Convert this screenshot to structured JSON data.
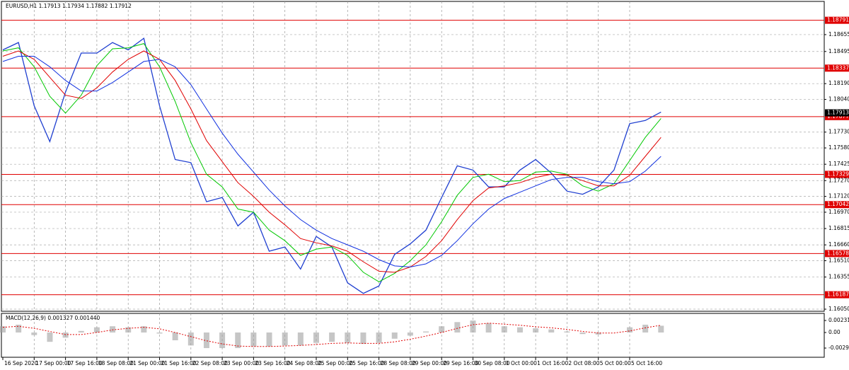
{
  "chart_data": {
    "type": "line",
    "title": "EURUSD,H1  1.17913 1.17934 1.17882 1.17912",
    "categories": [
      "16 Sep 2020",
      null,
      "17 Sep 00:00",
      null,
      "17 Sep 16:00",
      null,
      "18 Sep 08:00",
      null,
      "21 Sep 00:00",
      null,
      "21 Sep 16:00",
      null,
      "22 Sep 08:00",
      null,
      "23 Sep 00:00",
      null,
      "23 Sep 16:00",
      null,
      "24 Sep 08:00",
      null,
      "25 Sep 00:00",
      null,
      "25 Sep 16:00",
      null,
      "28 Sep 08:00",
      null,
      "29 Sep 00:00",
      null,
      "29 Sep 16:00",
      null,
      "30 Sep 08:00",
      null,
      "1 Oct 00:00",
      null,
      "1 Oct 16:00",
      null,
      "2 Oct 08:00",
      null,
      "5 Oct 00:00",
      null,
      "5 Oct 16:00",
      null,
      null
    ],
    "series": [
      {
        "color": "#1f3fd0",
        "values": [
          1.1851,
          1.1858,
          1.1798,
          1.1764,
          1.1811,
          1.1848,
          1.1848,
          1.1858,
          1.1851,
          1.1862,
          1.1798,
          1.1747,
          1.1744,
          1.1707,
          1.1711,
          1.1684,
          1.1697,
          1.166,
          1.1664,
          1.1643,
          1.1674,
          1.1664,
          1.163,
          1.162,
          1.1627,
          1.1657,
          1.1667,
          1.168,
          1.1711,
          1.1741,
          1.1737,
          1.1721,
          1.1721,
          1.1737,
          1.1747,
          1.1734,
          1.1717,
          1.1714,
          1.1721,
          1.1737,
          1.1781,
          1.1784,
          1.1792
        ]
      },
      {
        "color": "#00c800",
        "values": [
          1.185,
          1.1853,
          1.1835,
          1.1807,
          1.1791,
          1.1808,
          1.1836,
          1.1852,
          1.1853,
          1.1857,
          1.1835,
          1.1802,
          1.1763,
          1.1733,
          1.1721,
          1.17,
          1.1697,
          1.168,
          1.167,
          1.1656,
          1.1662,
          1.1664,
          1.1656,
          1.164,
          1.1631,
          1.1639,
          1.1651,
          1.1666,
          1.1688,
          1.1713,
          1.173,
          1.1733,
          1.1726,
          1.1727,
          1.1735,
          1.1736,
          1.1733,
          1.1722,
          1.1717,
          1.1724,
          1.1746,
          1.1768,
          1.1786
        ]
      },
      {
        "color": "#e00000",
        "values": [
          1.1845,
          1.185,
          1.1842,
          1.1825,
          1.1808,
          1.1805,
          1.1815,
          1.183,
          1.1842,
          1.185,
          1.1842,
          1.1822,
          1.1795,
          1.1765,
          1.1745,
          1.1725,
          1.1712,
          1.1697,
          1.1685,
          1.1672,
          1.1668,
          1.1665,
          1.166,
          1.165,
          1.1641,
          1.164,
          1.1645,
          1.1655,
          1.167,
          1.169,
          1.1708,
          1.172,
          1.1722,
          1.1725,
          1.173,
          1.1733,
          1.1732,
          1.1727,
          1.1722,
          1.1722,
          1.1732,
          1.175,
          1.1768
        ]
      },
      {
        "color": "#1030e0",
        "values": [
          1.184,
          1.1845,
          1.1845,
          1.1835,
          1.1822,
          1.1812,
          1.1812,
          1.182,
          1.183,
          1.184,
          1.1842,
          1.1835,
          1.1818,
          1.1795,
          1.1772,
          1.1752,
          1.1735,
          1.1718,
          1.1703,
          1.169,
          1.168,
          1.1672,
          1.1666,
          1.166,
          1.1652,
          1.1646,
          1.1645,
          1.1648,
          1.1656,
          1.167,
          1.1686,
          1.17,
          1.171,
          1.1716,
          1.1722,
          1.1728,
          1.173,
          1.173,
          1.1726,
          1.1724,
          1.1726,
          1.1736,
          1.175
        ]
      }
    ],
    "ylim": [
      1.1603,
      1.1897
    ],
    "yticks": [
      {
        "value": 1.18655,
        "label": "1.18655"
      },
      {
        "value": 1.18495,
        "label": "1.18495"
      },
      {
        "value": 1.1819,
        "label": "1.18190"
      },
      {
        "value": 1.1804,
        "label": "1.18040"
      },
      {
        "value": 1.1773,
        "label": "1.17730"
      },
      {
        "value": 1.1758,
        "label": "1.17580"
      },
      {
        "value": 1.17425,
        "label": "1.17425"
      },
      {
        "value": 1.1727,
        "label": "1.17270"
      },
      {
        "value": 1.1712,
        "label": "1.17120"
      },
      {
        "value": 1.1697,
        "label": "1.16970"
      },
      {
        "value": 1.16815,
        "label": "1.16815"
      },
      {
        "value": 1.1666,
        "label": "1.16660"
      },
      {
        "value": 1.1651,
        "label": "1.16510"
      },
      {
        "value": 1.16355,
        "label": "1.16355"
      },
      {
        "value": 1.1605,
        "label": "1.16050"
      }
    ],
    "levels": [
      1.18791,
      1.18337,
      1.17877,
      1.17329,
      1.17042,
      1.16578,
      1.16187
    ],
    "level_color": "#e00000",
    "current_price": 1.17913,
    "grid": true,
    "macd": {
      "title": "MACD(12,26,9) 0.001327 0.001440",
      "histogram_color": "#a0a0a0",
      "signal_color": "#e00000",
      "histogram": [
        0.0012,
        0.0015,
        -0.0005,
        -0.0018,
        -0.001,
        0.0003,
        0.001,
        0.0012,
        0.001,
        0.0012,
        -0.0002,
        -0.0015,
        -0.0025,
        -0.003,
        -0.003,
        -0.003,
        -0.0027,
        -0.0027,
        -0.0025,
        -0.0025,
        -0.002,
        -0.0018,
        -0.002,
        -0.0022,
        -0.002,
        -0.0012,
        -0.0006,
        0.0002,
        0.0012,
        0.002,
        0.0023,
        0.0018,
        0.0012,
        0.001,
        0.0008,
        0.0006,
        0.0002,
        -0.0003,
        -0.0004,
        0.0,
        0.001,
        0.0015,
        0.0013
      ],
      "signal": [
        0.001,
        0.0012,
        0.0008,
        0.0002,
        -0.0004,
        -0.0004,
        0.0,
        0.0005,
        0.0008,
        0.001,
        0.0007,
        0.0,
        -0.0008,
        -0.0016,
        -0.0022,
        -0.0026,
        -0.0027,
        -0.0027,
        -0.0026,
        -0.0025,
        -0.0023,
        -0.0021,
        -0.002,
        -0.0021,
        -0.0021,
        -0.0018,
        -0.0013,
        -0.0007,
        0.0,
        0.0008,
        0.0015,
        0.0018,
        0.0016,
        0.0014,
        0.0011,
        0.0009,
        0.0006,
        0.0002,
        -0.0001,
        -0.0001,
        0.0003,
        0.0009,
        0.0014
      ],
      "ylim": [
        -0.004767,
        0.003674
      ],
      "yticks": [
        0.002313,
        {
          "value": 0,
          "label": "0.00"
        },
        -0.002997
      ]
    }
  }
}
